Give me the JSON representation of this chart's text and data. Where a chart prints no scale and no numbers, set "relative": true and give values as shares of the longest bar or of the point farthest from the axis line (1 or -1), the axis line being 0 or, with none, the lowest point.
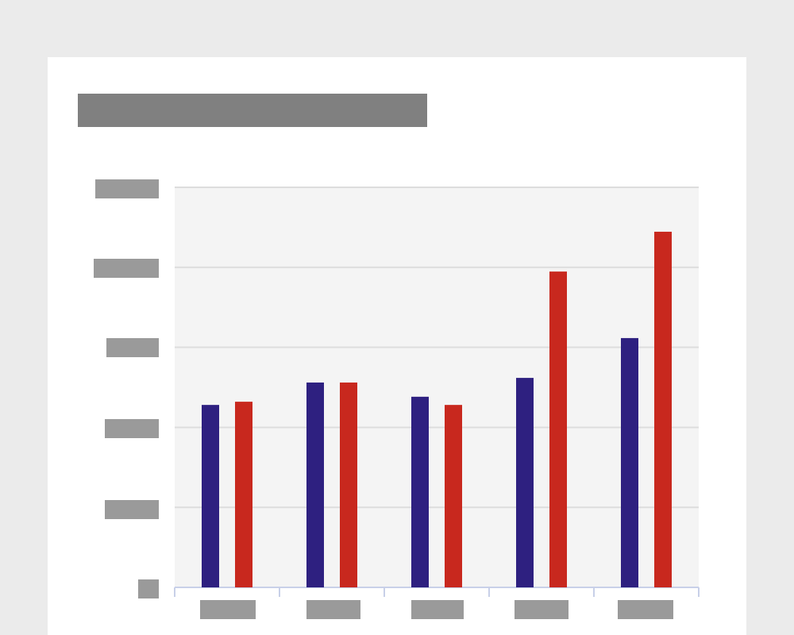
{
  "chart_data": {
    "type": "bar",
    "relative": true,
    "categories": [
      null,
      null,
      null,
      null,
      null
    ],
    "series": [
      {
        "color": "#2e2080",
        "values": [
          0.513,
          0.576,
          0.536,
          0.589,
          0.701
        ]
      },
      {
        "color": "#c8281e",
        "values": [
          0.522,
          0.576,
          0.513,
          0.888,
          1
        ]
      }
    ],
    "grid": true
  }
}
